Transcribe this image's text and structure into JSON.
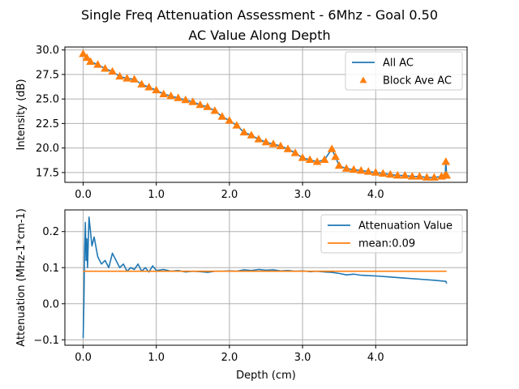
{
  "title_line1": "Single Freq Attenuation Assessment - 6Mhz - Goal 0.50",
  "title_line2": "AC Value Along Depth",
  "colors": {
    "blue": "#1f77b4",
    "orange": "#ff7f0e",
    "grid": "#b0b0b0"
  },
  "chart_data": [
    {
      "type": "line",
      "title": "",
      "xlabel": "",
      "ylabel": "Intensity (dB)",
      "xlim": [
        -0.25,
        5.25
      ],
      "ylim": [
        16.5,
        30.3
      ],
      "grid": true,
      "legend_position": "top-right",
      "x_ticks": [
        "0.0",
        "1.0",
        "2.0",
        "3.0",
        "4.0"
      ],
      "y_ticks": [
        "17.5",
        "20.0",
        "22.5",
        "25.0",
        "27.5",
        "30.0"
      ],
      "series": [
        {
          "name": "All AC",
          "style": "line",
          "color": "#1f77b4",
          "x": [
            0.0,
            0.05,
            0.1,
            0.2,
            0.3,
            0.4,
            0.5,
            0.6,
            0.7,
            0.8,
            0.9,
            1.0,
            1.1,
            1.2,
            1.3,
            1.4,
            1.5,
            1.6,
            1.7,
            1.8,
            1.9,
            2.0,
            2.1,
            2.2,
            2.3,
            2.4,
            2.5,
            2.6,
            2.7,
            2.8,
            2.9,
            3.0,
            3.1,
            3.2,
            3.3,
            3.4,
            3.45,
            3.5,
            3.6,
            3.7,
            3.8,
            3.9,
            4.0,
            4.1,
            4.2,
            4.3,
            4.4,
            4.5,
            4.6,
            4.7,
            4.8,
            4.9,
            4.95,
            4.96,
            4.97
          ],
          "values": [
            29.6,
            29.2,
            28.8,
            28.5,
            28.1,
            27.8,
            27.3,
            27.1,
            27.0,
            26.5,
            26.2,
            25.9,
            25.5,
            25.3,
            25.1,
            24.9,
            24.7,
            24.4,
            24.2,
            23.8,
            23.2,
            22.8,
            22.3,
            21.6,
            21.3,
            20.9,
            20.6,
            20.4,
            20.2,
            19.9,
            19.5,
            19.0,
            18.8,
            18.6,
            18.8,
            19.9,
            19.1,
            18.2,
            17.9,
            17.8,
            17.7,
            17.6,
            17.5,
            17.4,
            17.3,
            17.2,
            17.2,
            17.1,
            17.1,
            17.0,
            17.0,
            17.1,
            17.2,
            18.6,
            17.2
          ]
        },
        {
          "name": "Block Ave AC",
          "style": "marker-triangle",
          "color": "#ff7f0e",
          "x": [
            0.0,
            0.05,
            0.1,
            0.2,
            0.3,
            0.4,
            0.5,
            0.6,
            0.7,
            0.8,
            0.9,
            1.0,
            1.1,
            1.2,
            1.3,
            1.4,
            1.5,
            1.6,
            1.7,
            1.8,
            1.9,
            2.0,
            2.1,
            2.2,
            2.3,
            2.4,
            2.5,
            2.6,
            2.7,
            2.8,
            2.9,
            3.0,
            3.1,
            3.2,
            3.3,
            3.4,
            3.45,
            3.5,
            3.6,
            3.7,
            3.8,
            3.9,
            4.0,
            4.1,
            4.2,
            4.3,
            4.4,
            4.5,
            4.6,
            4.7,
            4.8,
            4.9,
            4.95,
            4.96,
            4.97
          ],
          "values": [
            29.6,
            29.2,
            28.8,
            28.5,
            28.1,
            27.8,
            27.3,
            27.1,
            27.0,
            26.5,
            26.2,
            25.9,
            25.5,
            25.3,
            25.1,
            24.9,
            24.7,
            24.4,
            24.2,
            23.8,
            23.2,
            22.8,
            22.3,
            21.6,
            21.3,
            20.9,
            20.6,
            20.4,
            20.2,
            19.9,
            19.5,
            19.0,
            18.8,
            18.6,
            18.8,
            19.9,
            19.1,
            18.2,
            17.9,
            17.8,
            17.7,
            17.6,
            17.5,
            17.4,
            17.3,
            17.2,
            17.2,
            17.1,
            17.1,
            17.0,
            17.0,
            17.1,
            17.2,
            18.6,
            17.2
          ]
        }
      ]
    },
    {
      "type": "line",
      "title": "",
      "xlabel": "Depth (cm)",
      "ylabel": "Attenuation (MHz-1*cm-1)",
      "xlim": [
        -0.25,
        5.25
      ],
      "ylim": [
        -0.115,
        0.26
      ],
      "grid": true,
      "legend_position": "top-right",
      "x_ticks": [
        "0.0",
        "1.0",
        "2.0",
        "3.0",
        "4.0"
      ],
      "y_ticks": [
        "−0.1",
        "0.0",
        "0.1",
        "0.2"
      ],
      "series": [
        {
          "name": "Attenuation Value",
          "color": "#1f77b4",
          "x": [
            0.0,
            0.01,
            0.02,
            0.03,
            0.04,
            0.05,
            0.06,
            0.08,
            0.1,
            0.12,
            0.15,
            0.2,
            0.25,
            0.3,
            0.35,
            0.4,
            0.45,
            0.5,
            0.55,
            0.6,
            0.65,
            0.7,
            0.75,
            0.8,
            0.85,
            0.9,
            0.95,
            1.0,
            1.1,
            1.2,
            1.3,
            1.4,
            1.5,
            1.6,
            1.7,
            1.8,
            1.9,
            2.0,
            2.1,
            2.2,
            2.3,
            2.4,
            2.5,
            2.6,
            2.7,
            2.8,
            2.9,
            3.0,
            3.1,
            3.2,
            3.3,
            3.4,
            3.5,
            3.6,
            3.7,
            3.8,
            3.9,
            4.0,
            4.2,
            4.4,
            4.6,
            4.8,
            4.9,
            4.96,
            4.97
          ],
          "values": [
            -0.095,
            0.0,
            0.15,
            0.225,
            0.12,
            0.18,
            0.1,
            0.24,
            0.2,
            0.16,
            0.185,
            0.13,
            0.11,
            0.12,
            0.1,
            0.14,
            0.12,
            0.1,
            0.11,
            0.09,
            0.1,
            0.095,
            0.11,
            0.09,
            0.1,
            0.088,
            0.105,
            0.092,
            0.095,
            0.09,
            0.092,
            0.088,
            0.09,
            0.089,
            0.087,
            0.09,
            0.09,
            0.091,
            0.09,
            0.094,
            0.092,
            0.095,
            0.093,
            0.094,
            0.091,
            0.092,
            0.09,
            0.091,
            0.089,
            0.09,
            0.088,
            0.087,
            0.084,
            0.08,
            0.082,
            0.079,
            0.078,
            0.077,
            0.074,
            0.071,
            0.068,
            0.065,
            0.063,
            0.062,
            0.056
          ]
        },
        {
          "name": "mean:0.09",
          "color": "#ff7f0e",
          "x": [
            0.0,
            4.97
          ],
          "values": [
            0.09,
            0.09
          ]
        }
      ]
    }
  ]
}
